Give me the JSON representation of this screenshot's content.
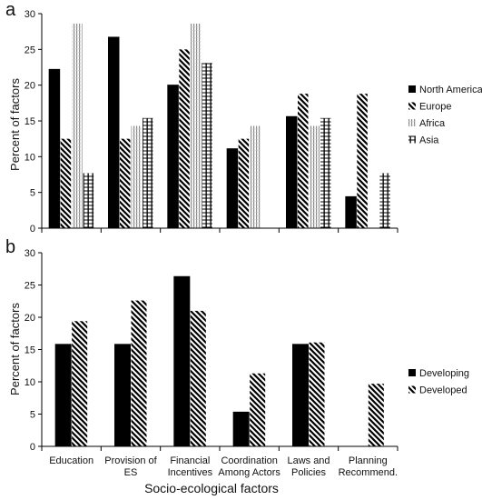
{
  "figure": {
    "x_axis_title": "Socio-ecological factors"
  },
  "chart_data": [
    {
      "type": "bar",
      "panel_label": "a",
      "ylabel": "Percent of factors",
      "ylim": [
        0,
        30
      ],
      "yticks": [
        0,
        5,
        10,
        15,
        20,
        25,
        30
      ],
      "categories": [
        [
          "Education"
        ],
        [
          "Provision of",
          "ES"
        ],
        [
          "Financial",
          "Incentives"
        ],
        [
          "Coordination",
          "Among Actors"
        ],
        [
          "Laws and",
          "Policies"
        ],
        [
          "Planning",
          "Recommend."
        ]
      ],
      "legend_position": "right",
      "series": [
        {
          "name": "North America",
          "pattern": "solid",
          "values": [
            22.2,
            26.7,
            20.0,
            11.1,
            15.6,
            4.4
          ]
        },
        {
          "name": "Europe",
          "pattern": "diagonal",
          "values": [
            12.5,
            12.5,
            25.0,
            12.5,
            18.8,
            18.8
          ]
        },
        {
          "name": "Africa",
          "pattern": "vertical",
          "values": [
            28.6,
            14.3,
            28.6,
            14.3,
            14.3,
            0
          ]
        },
        {
          "name": "Asia",
          "pattern": "grid",
          "values": [
            7.7,
            15.4,
            23.1,
            0,
            15.4,
            7.7
          ]
        }
      ]
    },
    {
      "type": "bar",
      "panel_label": "b",
      "ylabel": "Percent of factors",
      "ylim": [
        0,
        30
      ],
      "yticks": [
        0,
        5,
        10,
        15,
        20,
        25,
        30
      ],
      "categories": [
        [
          "Education"
        ],
        [
          "Provision of",
          "ES"
        ],
        [
          "Financial",
          "Incentives"
        ],
        [
          "Coordination",
          "Among Actors"
        ],
        [
          "Laws and",
          "Policies"
        ],
        [
          "Planning",
          "Recommend."
        ]
      ],
      "legend_position": "right",
      "series": [
        {
          "name": "Developing",
          "pattern": "solid",
          "values": [
            15.8,
            15.8,
            26.3,
            5.3,
            15.8,
            0
          ]
        },
        {
          "name": "Developed",
          "pattern": "diagonal",
          "values": [
            19.4,
            22.6,
            21.0,
            11.3,
            16.1,
            9.7
          ]
        }
      ]
    }
  ]
}
